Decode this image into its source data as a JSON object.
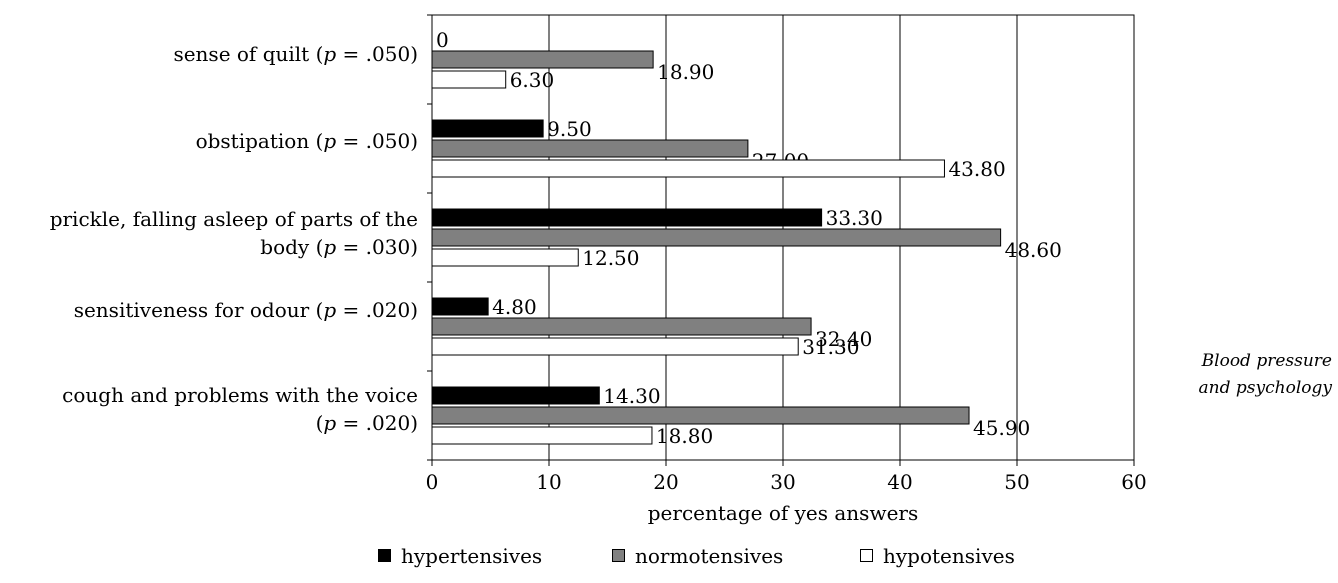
{
  "chart_data": {
    "type": "bar",
    "orientation": "horizontal",
    "categories": [
      {
        "text": "sense of quilt (",
        "p": "p",
        "rest": " = .050)"
      },
      {
        "text": "obstipation (",
        "p": "p",
        "rest": " = .050)"
      },
      {
        "text": "prickle, falling asleep of parts of the body (",
        "p": "p",
        "rest": " = .030)"
      },
      {
        "text": "sensitiveness for odour (",
        "p": "p",
        "rest": " = .020)"
      },
      {
        "text": "cough and problems with the voice (",
        "p": "p",
        "rest": " = .020)"
      }
    ],
    "series": [
      {
        "name": "hypertensives",
        "color": "#000000",
        "values": [
          0,
          9.5,
          33.3,
          4.8,
          14.3
        ],
        "labels": [
          "0",
          "9.50",
          "33.30",
          "4.80",
          "14.30"
        ]
      },
      {
        "name": "normotensives",
        "color": "#808080",
        "values": [
          18.9,
          27.0,
          48.6,
          32.4,
          45.9
        ],
        "labels": [
          "18.90",
          "27.00",
          "48.60",
          "32.40",
          "45.90"
        ]
      },
      {
        "name": "hypotensives",
        "color": "#ffffff",
        "values": [
          6.3,
          43.8,
          12.5,
          31.3,
          18.8
        ],
        "labels": [
          "6.30",
          "43.80",
          "12.50",
          "31.30",
          "18.80"
        ]
      }
    ],
    "xlabel": "percentage of yes answers",
    "xlim": [
      0,
      60
    ],
    "xticks": [
      "0",
      "10",
      "20",
      "30",
      "40",
      "50",
      "60"
    ],
    "grid": true,
    "legend_position": "bottom"
  },
  "caption": {
    "line1": "Blood pressure",
    "line2": "and psychology"
  }
}
